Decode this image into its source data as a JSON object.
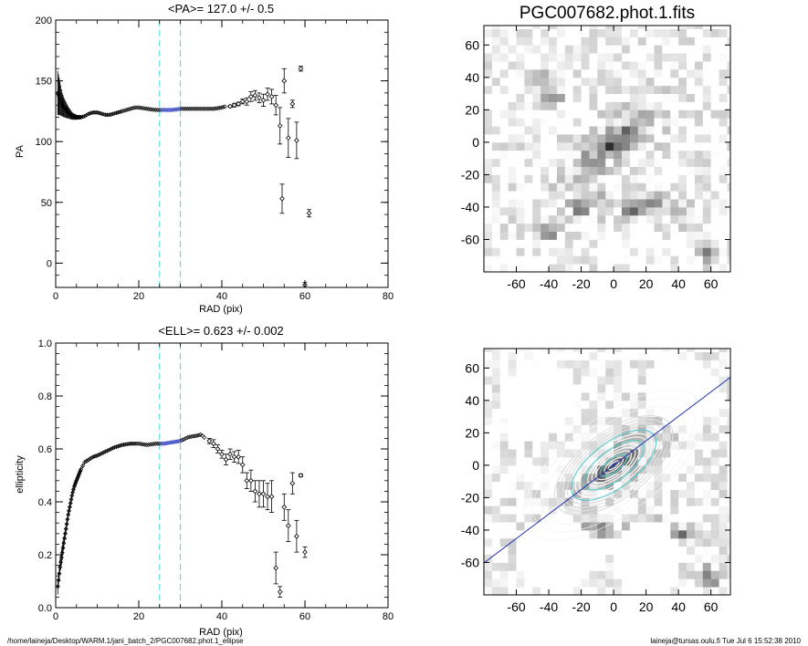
{
  "footer": {
    "left": "/home/laineja/Desktop/WARM.1/jani_batch_2/PGC007682.phot.1_ellipse",
    "right": "laineja@tursas.oulu.fi  Tue Jul  6 15:52:38 2010"
  },
  "colors": {
    "band": "#66dddd",
    "highlight": "#2233bb",
    "line": "#2233aa",
    "ink": "#000000"
  },
  "chart_data": [
    {
      "type": "scatter",
      "id": "pa",
      "title": "<PA>= 127.0 +/-   0.5",
      "xlabel": "RAD (pix)",
      "ylabel": "PA",
      "xlim": [
        0,
        80
      ],
      "ylim": [
        -20,
        200
      ],
      "xticks": [
        0,
        20,
        40,
        60,
        80
      ],
      "yticks": [
        0,
        50,
        100,
        150,
        200
      ],
      "band": [
        25,
        30
      ],
      "highlight_range": [
        25,
        30
      ],
      "smooth": [
        [
          0.5,
          140
        ],
        [
          1.0,
          136
        ],
        [
          1.5,
          131
        ],
        [
          2.0,
          128
        ],
        [
          3,
          124
        ],
        [
          4,
          121
        ],
        [
          5,
          120
        ],
        [
          6,
          120
        ],
        [
          7,
          121
        ],
        [
          8,
          123
        ],
        [
          9,
          124
        ],
        [
          10,
          124
        ],
        [
          11,
          123
        ],
        [
          12,
          122
        ],
        [
          13,
          122
        ],
        [
          14,
          123
        ],
        [
          15,
          124
        ],
        [
          16,
          125
        ],
        [
          17,
          126
        ],
        [
          18,
          127
        ],
        [
          19,
          128
        ],
        [
          20,
          128
        ],
        [
          22,
          127
        ],
        [
          24,
          126
        ],
        [
          26,
          126
        ],
        [
          28,
          126
        ],
        [
          30,
          127
        ],
        [
          32,
          127
        ],
        [
          34,
          127
        ],
        [
          36,
          127
        ],
        [
          38,
          127
        ],
        [
          40,
          128
        ],
        [
          41,
          129
        ]
      ],
      "smooth_err": [
        [
          0.5,
          18
        ],
        [
          0.8,
          16
        ],
        [
          1.0,
          14
        ],
        [
          1.3,
          12
        ],
        [
          1.5,
          10
        ],
        [
          2.0,
          8
        ],
        [
          3,
          5
        ],
        [
          4,
          3
        ],
        [
          5,
          2
        ],
        [
          6,
          1.5
        ],
        [
          8,
          1
        ],
        [
          10,
          1
        ],
        [
          14,
          1
        ],
        [
          18,
          0.8
        ],
        [
          22,
          0.6
        ]
      ],
      "sparse": [
        [
          42,
          129,
          1
        ],
        [
          43,
          130,
          1.5
        ],
        [
          44,
          131,
          1.5
        ],
        [
          45,
          133,
          2
        ],
        [
          46,
          133,
          3
        ],
        [
          47,
          137,
          4
        ],
        [
          48,
          138,
          4
        ],
        [
          49,
          136,
          4
        ],
        [
          50,
          134,
          5
        ],
        [
          51,
          139,
          5
        ],
        [
          52,
          137,
          6
        ],
        [
          53,
          130,
          8
        ],
        [
          54,
          113,
          15
        ],
        [
          54.5,
          53,
          12
        ],
        [
          55,
          150,
          10
        ],
        [
          56,
          103,
          16
        ],
        [
          57,
          131,
          3
        ],
        [
          58,
          101,
          15
        ],
        [
          59,
          160,
          2
        ],
        [
          60,
          -18,
          2
        ],
        [
          61,
          41,
          3
        ]
      ]
    },
    {
      "type": "scatter",
      "id": "ell",
      "title": "<ELL>= 0.623 +/-  0.002",
      "xlabel": "RAD (pix)",
      "ylabel": "ellipticity",
      "xlim": [
        0,
        80
      ],
      "ylim": [
        0,
        1
      ],
      "xticks": [
        0,
        20,
        40,
        60,
        80
      ],
      "yticks": [
        0.0,
        0.2,
        0.4,
        0.6,
        0.8,
        1.0
      ],
      "band": [
        25,
        30
      ],
      "highlight_range": [
        25,
        30
      ],
      "smooth": [
        [
          0.5,
          0.08
        ],
        [
          0.8,
          0.12
        ],
        [
          1.0,
          0.15
        ],
        [
          1.3,
          0.18
        ],
        [
          1.6,
          0.21
        ],
        [
          2.0,
          0.25
        ],
        [
          2.5,
          0.3
        ],
        [
          3.0,
          0.35
        ],
        [
          3.5,
          0.39
        ],
        [
          4.0,
          0.43
        ],
        [
          4.5,
          0.46
        ],
        [
          5.0,
          0.48
        ],
        [
          5.5,
          0.5
        ],
        [
          6.0,
          0.52
        ],
        [
          7,
          0.55
        ],
        [
          8,
          0.56
        ],
        [
          9,
          0.57
        ],
        [
          10,
          0.575
        ],
        [
          12,
          0.59
        ],
        [
          14,
          0.605
        ],
        [
          16,
          0.615
        ],
        [
          18,
          0.62
        ],
        [
          20,
          0.62
        ],
        [
          22,
          0.615
        ],
        [
          24,
          0.62
        ],
        [
          26,
          0.62
        ],
        [
          28,
          0.625
        ],
        [
          30,
          0.63
        ],
        [
          32,
          0.645
        ],
        [
          34,
          0.65
        ],
        [
          35,
          0.655
        ],
        [
          36,
          0.64
        ]
      ],
      "smooth_err": [
        [
          0.5,
          0.03
        ],
        [
          1.0,
          0.03
        ],
        [
          1.5,
          0.03
        ],
        [
          2.0,
          0.025
        ],
        [
          3,
          0.02
        ],
        [
          4,
          0.015
        ],
        [
          5,
          0.012
        ],
        [
          6,
          0.01
        ],
        [
          8,
          0.008
        ],
        [
          10,
          0.006
        ],
        [
          14,
          0.005
        ],
        [
          20,
          0.004
        ]
      ],
      "sparse": [
        [
          37,
          0.63,
          0.01
        ],
        [
          38,
          0.62,
          0.015
        ],
        [
          39,
          0.6,
          0.015
        ],
        [
          40,
          0.58,
          0.015
        ],
        [
          41,
          0.56,
          0.02
        ],
        [
          42,
          0.58,
          0.02
        ],
        [
          43,
          0.57,
          0.02
        ],
        [
          44,
          0.57,
          0.025
        ],
        [
          45,
          0.54,
          0.03
        ],
        [
          46,
          0.48,
          0.03
        ],
        [
          47,
          0.48,
          0.04
        ],
        [
          48,
          0.44,
          0.04
        ],
        [
          49,
          0.43,
          0.05
        ],
        [
          50,
          0.43,
          0.05
        ],
        [
          51,
          0.42,
          0.05
        ],
        [
          52,
          0.42,
          0.06
        ],
        [
          53,
          0.15,
          0.06
        ],
        [
          54,
          0.06,
          0.02
        ],
        [
          55,
          0.38,
          0.05
        ],
        [
          56,
          0.31,
          0.06
        ],
        [
          57,
          0.47,
          0.04
        ],
        [
          58,
          0.27,
          0.06
        ],
        [
          59,
          0.5,
          0.005
        ],
        [
          60,
          0.21,
          0.02
        ]
      ]
    },
    {
      "type": "heatmap",
      "id": "image",
      "title": "PGC007682.phot.1.fits",
      "xlim": [
        -80,
        72
      ],
      "ylim": [
        -80,
        72
      ],
      "xticks": [
        -60,
        -40,
        -20,
        0,
        20,
        40,
        60
      ],
      "yticks": [
        -60,
        -40,
        -20,
        0,
        20,
        40,
        60
      ],
      "galaxy": {
        "pa_deg": 37,
        "ell": 0.62,
        "peak": 0.9
      },
      "blobs": [
        [
          -45,
          40,
          0.6
        ],
        [
          -38,
          28,
          0.5
        ],
        [
          -20,
          -40,
          0.55
        ],
        [
          -5,
          -38,
          0.4
        ],
        [
          12,
          -42,
          0.55
        ],
        [
          42,
          -43,
          0.5
        ],
        [
          25,
          -37,
          0.4
        ],
        [
          -40,
          -55,
          0.4
        ],
        [
          60,
          -68,
          0.5
        ]
      ]
    },
    {
      "type": "heatmap",
      "id": "overlay",
      "title": "",
      "xlim": [
        -80,
        72
      ],
      "ylim": [
        -80,
        72
      ],
      "xticks": [
        -60,
        -40,
        -20,
        0,
        20,
        40,
        60
      ],
      "yticks": [
        -60,
        -40,
        -20,
        0,
        20,
        40,
        60
      ],
      "masks": [
        [
          -48,
          38,
          22
        ],
        [
          -35,
          -55,
          24
        ],
        [
          42,
          45,
          22
        ],
        [
          20,
          -58,
          22
        ]
      ],
      "line": {
        "pa_deg": 37
      }
    }
  ]
}
